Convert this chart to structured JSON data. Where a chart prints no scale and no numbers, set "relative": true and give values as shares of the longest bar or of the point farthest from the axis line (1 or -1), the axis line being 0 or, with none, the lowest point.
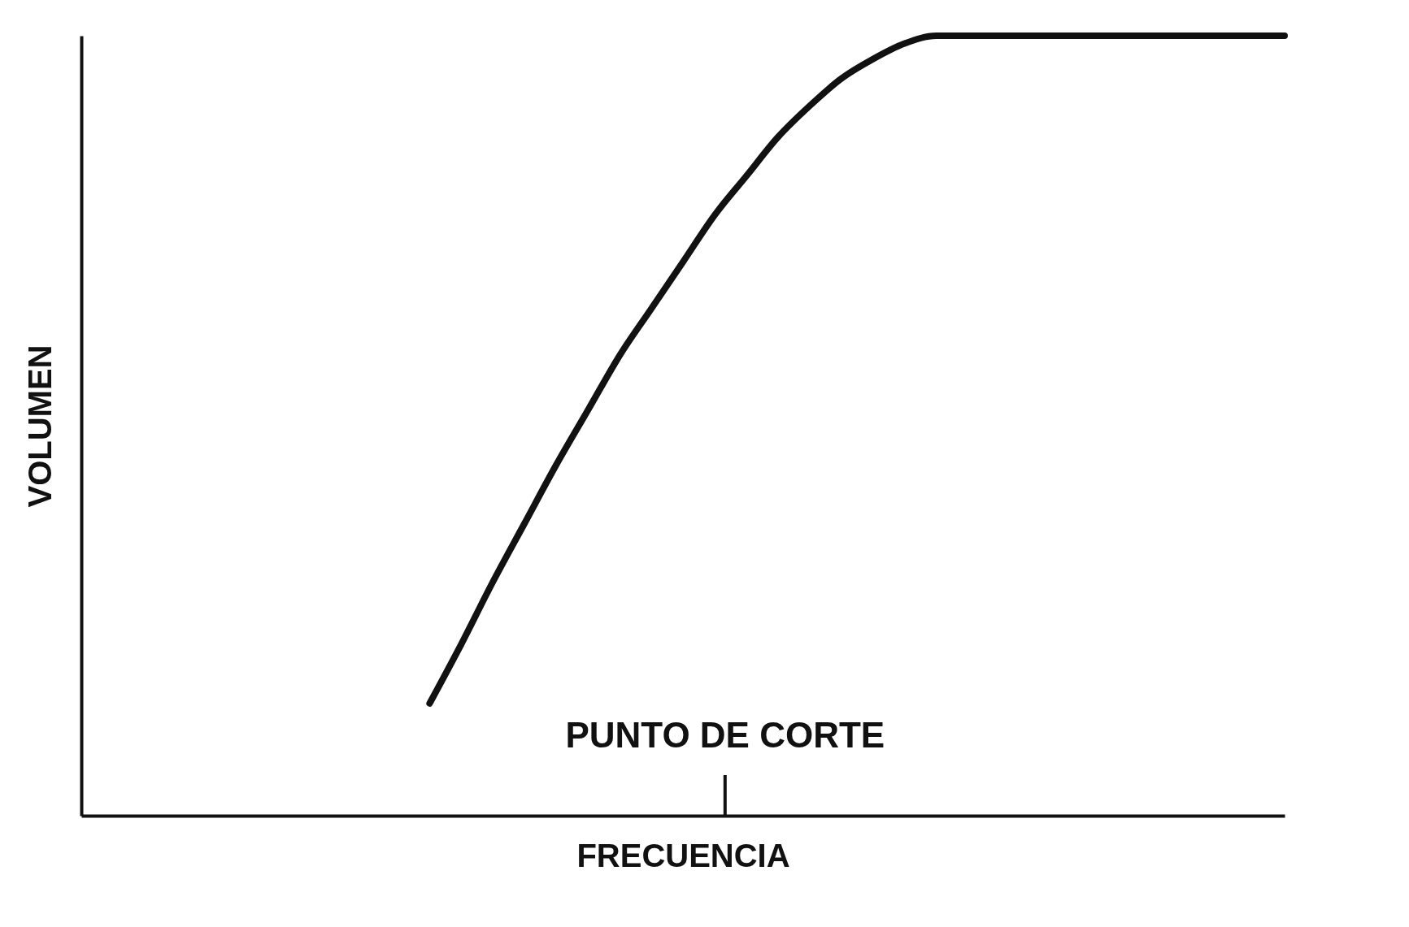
{
  "chart_data": {
    "type": "line",
    "relative": true,
    "xlabel": "FRECUENCIA",
    "ylabel": "VOLUMEN",
    "categories": [
      null,
      null,
      null,
      null,
      null,
      null,
      null,
      null,
      null,
      null,
      null,
      null,
      null,
      null,
      null,
      null,
      null,
      null,
      null,
      null,
      null,
      null,
      null,
      null,
      null,
      null,
      null,
      null,
      null,
      null,
      null,
      null,
      null,
      null,
      null,
      null,
      null,
      null,
      null
    ],
    "series": [
      {
        "color": "#111111",
        "values": [
          null,
          null,
          null,
          null,
          null,
          null,
          null,
          null,
          null,
          null,
          null,
          0.144,
          0.22,
          0.3,
          0.375,
          0.45,
          0.52,
          0.59,
          0.65,
          0.71,
          0.77,
          0.82,
          0.87,
          0.91,
          0.945,
          0.97,
          0.99,
          1,
          1,
          1,
          1,
          1,
          1,
          1,
          1,
          1,
          1,
          1,
          1
        ]
      }
    ],
    "annotations": [
      "PUNTO DE CORTE"
    ],
    "grid": false
  }
}
